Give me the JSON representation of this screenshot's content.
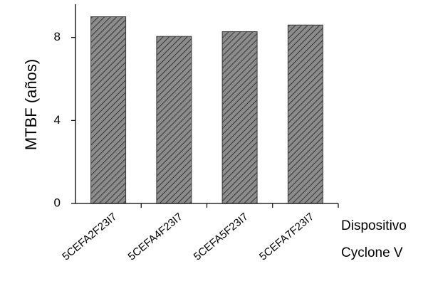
{
  "chart_data": {
    "type": "bar",
    "categories": [
      "5CEFA2F23I7",
      "5CEFA4F23I7",
      "5CEFA5F23I7",
      "5CEFA7F23I7"
    ],
    "values": [
      9.0,
      8.05,
      8.28,
      8.6
    ],
    "ylabel": "MTBF (años)",
    "xlabel_line1": "Dispositivo",
    "xlabel_line2": "Cyclone V",
    "yticks": [
      0,
      4,
      8
    ],
    "ylim": [
      0,
      9.6
    ],
    "grid": false,
    "bar_fill": "#8c8c8c",
    "hatch_color": "#3a3a3a",
    "axis_color": "#000000"
  }
}
